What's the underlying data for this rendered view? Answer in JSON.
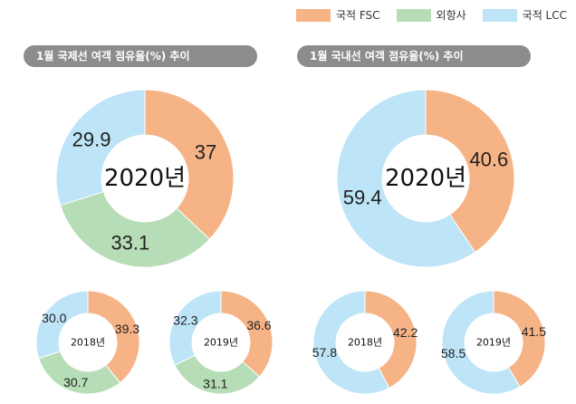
{
  "legend": [
    {
      "label": "국적 FSC",
      "color": "#f6b386"
    },
    {
      "label": "외항사",
      "color": "#b6ddb6"
    },
    {
      "label": "국적 LCC",
      "color": "#bde4f7"
    }
  ],
  "headers": {
    "left": "1월 국제선 여객 점유율(%) 추이",
    "right": "1월 국내선 여객 점유율(%) 추이"
  },
  "chart_data": [
    {
      "type": "pie",
      "group": "international",
      "center_label": "2020년",
      "series": [
        {
          "name": "국적 FSC",
          "value": 37,
          "label": "37",
          "color": "#f6b386"
        },
        {
          "name": "외항사",
          "value": 33.1,
          "label": "33.1",
          "color": "#b6ddb6"
        },
        {
          "name": "국적 LCC",
          "value": 29.9,
          "label": "29.9",
          "color": "#bde4f7"
        }
      ]
    },
    {
      "type": "pie",
      "group": "domestic",
      "center_label": "2020년",
      "series": [
        {
          "name": "국적 FSC",
          "value": 40.6,
          "label": "40.6",
          "color": "#f6b386"
        },
        {
          "name": "국적 LCC",
          "value": 59.4,
          "label": "59.4",
          "color": "#bde4f7"
        }
      ]
    },
    {
      "type": "pie",
      "group": "international",
      "center_label": "2018년",
      "series": [
        {
          "name": "국적 FSC",
          "value": 39.3,
          "label": "39.3",
          "color": "#f6b386"
        },
        {
          "name": "외항사",
          "value": 30.7,
          "label": "30.7",
          "color": "#b6ddb6"
        },
        {
          "name": "국적 LCC",
          "value": 30.0,
          "label": "30.0",
          "color": "#bde4f7"
        }
      ]
    },
    {
      "type": "pie",
      "group": "international",
      "center_label": "2019년",
      "series": [
        {
          "name": "국적 FSC",
          "value": 36.6,
          "label": "36.6",
          "color": "#f6b386"
        },
        {
          "name": "외항사",
          "value": 31.1,
          "label": "31.1",
          "color": "#b6ddb6"
        },
        {
          "name": "국적 LCC",
          "value": 32.3,
          "label": "32.3",
          "color": "#bde4f7"
        }
      ]
    },
    {
      "type": "pie",
      "group": "domestic",
      "center_label": "2018년",
      "series": [
        {
          "name": "국적 FSC",
          "value": 42.2,
          "label": "42.2",
          "color": "#f6b386"
        },
        {
          "name": "국적 LCC",
          "value": 57.8,
          "label": "57.8",
          "color": "#bde4f7"
        }
      ]
    },
    {
      "type": "pie",
      "group": "domestic",
      "center_label": "2019년",
      "series": [
        {
          "name": "국적 FSC",
          "value": 41.5,
          "label": "41.5",
          "color": "#f6b386"
        },
        {
          "name": "국적 LCC",
          "value": 58.5,
          "label": "58.5",
          "color": "#bde4f7"
        }
      ]
    }
  ]
}
